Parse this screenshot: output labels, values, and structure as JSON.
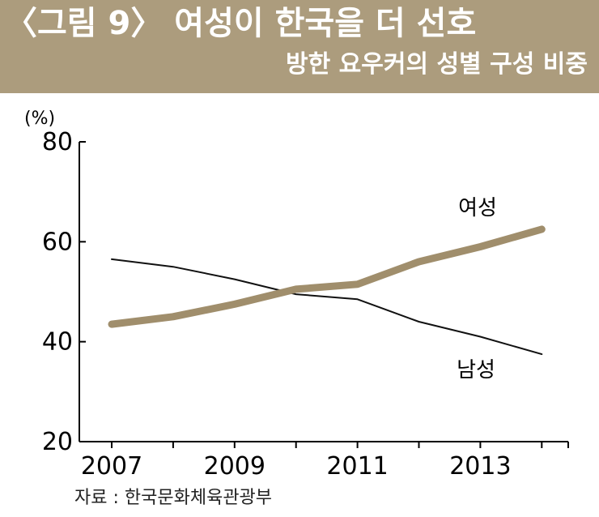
{
  "header": {
    "title": "〈그림 9〉 여성이 한국을 더 선호",
    "subtitle": "방한 요우커의 성별 구성 비중"
  },
  "source": "자료 : 한국문화체육관광부",
  "colors": {
    "header_bg": "#ac9c7d",
    "female_line": "#a08e6c",
    "male_line": "#111111"
  },
  "chart_data": {
    "type": "line",
    "unit_label": "(%)",
    "x": [
      2007,
      2008,
      2009,
      2010,
      2011,
      2012,
      2013,
      2014
    ],
    "xticks": [
      "2007",
      "2009",
      "2011",
      "2013"
    ],
    "ylim": [
      20,
      80
    ],
    "yticks": [
      "20",
      "40",
      "60",
      "80"
    ],
    "series": [
      {
        "name": "여성",
        "values": [
          43.5,
          45.0,
          47.5,
          50.5,
          51.5,
          56.0,
          59.0,
          62.5
        ]
      },
      {
        "name": "남성",
        "values": [
          56.5,
          55.0,
          52.5,
          49.5,
          48.5,
          44.0,
          41.0,
          37.5
        ]
      }
    ]
  }
}
